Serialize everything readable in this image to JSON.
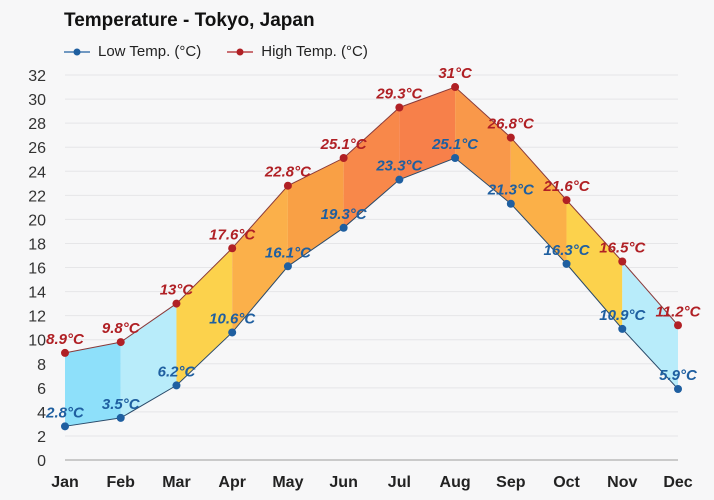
{
  "chart_data": {
    "type": "area",
    "title": "Temperature - Tokyo, Japan",
    "categories": [
      "Jan",
      "Feb",
      "Mar",
      "Apr",
      "May",
      "Jun",
      "Jul",
      "Aug",
      "Sep",
      "Oct",
      "Nov",
      "Dec"
    ],
    "series": [
      {
        "name": "Low Temp. (°C)",
        "color": "#1f5fa0",
        "values": [
          2.8,
          3.5,
          6.2,
          10.6,
          16.1,
          19.3,
          23.3,
          25.1,
          21.3,
          16.3,
          10.9,
          5.9
        ],
        "labels": [
          "2.8°C",
          "3.5°C",
          "6.2°C",
          "10.6°C",
          "16.1°C",
          "19.3°C",
          "23.3°C",
          "25.1°C",
          "21.3°C",
          "16.3°C",
          "10.9°C",
          "5.9°C"
        ]
      },
      {
        "name": "High Temp. (°C)",
        "color": "#b02025",
        "values": [
          8.9,
          9.8,
          13,
          17.6,
          22.8,
          25.1,
          29.3,
          31,
          26.8,
          21.6,
          16.5,
          11.2
        ],
        "labels": [
          "8.9°C",
          "9.8°C",
          "13°C",
          "17.6°C",
          "22.8°C",
          "25.1°C",
          "29.3°C",
          "31°C",
          "26.8°C",
          "21.6°C",
          "16.5°C",
          "11.2°C"
        ]
      }
    ],
    "segment_colors": [
      "#8ee0fa",
      "#b8ecfa",
      "#fcd24c",
      "#fbb04a",
      "#f9a045",
      "#f8884a",
      "#f7804a",
      "#f9984a",
      "#fbb048",
      "#fcd24c",
      "#b8ecfa"
    ],
    "ylim": [
      0,
      32
    ],
    "yticks": [
      "0",
      "2",
      "4",
      "6",
      "8",
      "10",
      "12",
      "14",
      "16",
      "18",
      "20",
      "22",
      "24",
      "26",
      "28",
      "30",
      "32"
    ],
    "grid": true,
    "legend": "top-left",
    "xlabel": "",
    "ylabel": ""
  }
}
